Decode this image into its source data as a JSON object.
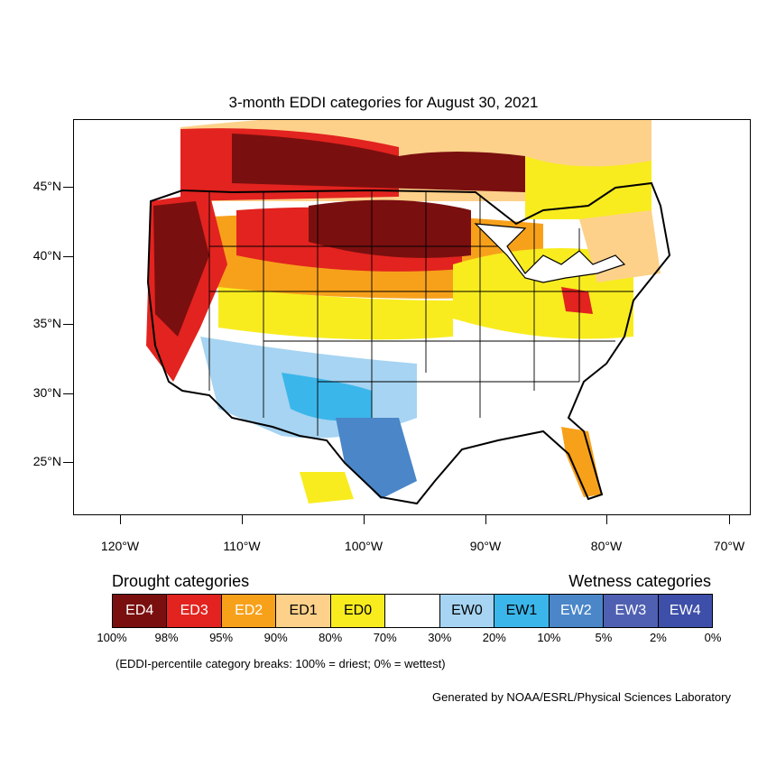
{
  "map": {
    "title": "3-month EDDI categories for August 30, 2021",
    "lat_labels": [
      "45°N",
      "40°N",
      "35°N",
      "30°N",
      "25°N"
    ],
    "lon_labels": [
      "120°W",
      "110°W",
      "100°W",
      "90°W",
      "80°W",
      "70°W"
    ]
  },
  "legend": {
    "drought_title": "Drought categories",
    "wetness_title": "Wetness categories",
    "categories": [
      {
        "label": "ED4",
        "color": "#7a0f0f",
        "text_color": "#ffffff"
      },
      {
        "label": "ED3",
        "color": "#e2231f",
        "text_color": "#ffffff"
      },
      {
        "label": "ED2",
        "color": "#f7a11b",
        "text_color": "#ffffff"
      },
      {
        "label": "ED1",
        "color": "#fdd18a",
        "text_color": "#000000"
      },
      {
        "label": "ED0",
        "color": "#f8ec1f",
        "text_color": "#000000"
      },
      {
        "label": "",
        "color": "#ffffff",
        "text_color": "#000000"
      },
      {
        "label": "EW0",
        "color": "#a6d4f2",
        "text_color": "#000000"
      },
      {
        "label": "EW1",
        "color": "#3bb6ea",
        "text_color": "#000000"
      },
      {
        "label": "EW2",
        "color": "#4a86c8",
        "text_color": "#ffffff"
      },
      {
        "label": "EW3",
        "color": "#4f60b2",
        "text_color": "#ffffff"
      },
      {
        "label": "EW4",
        "color": "#3d4fa8",
        "text_color": "#ffffff"
      }
    ],
    "breaks": [
      "100%",
      "98%",
      "95%",
      "90%",
      "80%",
      "70%",
      "30%",
      "20%",
      "10%",
      "5%",
      "2%",
      "0%"
    ],
    "note": "(EDDI-percentile category breaks: 100% = driest; 0% = wettest)",
    "credit": "Generated by NOAA/ESRL/Physical Sciences Laboratory"
  }
}
